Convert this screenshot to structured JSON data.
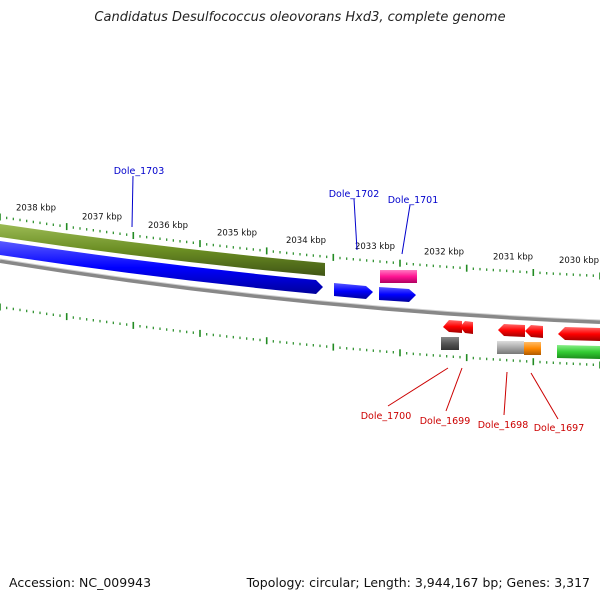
{
  "title": "Candidatus Desulfococcus oleovorans Hxd3, complete genome",
  "footer": {
    "accession": "Accession: NC_009943",
    "summary": "Topology: circular; Length: 3,944,167 bp; Genes: 3,317"
  },
  "scale_labels": [
    "2038 kbp",
    "2037 kbp",
    "2036 kbp",
    "2035 kbp",
    "2034 kbp",
    "2033 kbp",
    "2032 kbp",
    "2031 kbp",
    "2030 kbp"
  ],
  "genes": [
    {
      "label": "Dole_1703",
      "color": "#0000cc"
    },
    {
      "label": "Dole_1702",
      "color": "#0000cc"
    },
    {
      "label": "Dole_1701",
      "color": "#0000cc"
    },
    {
      "label": "Dole_1700",
      "color": "#cc0000"
    },
    {
      "label": "Dole_1699",
      "color": "#cc0000"
    },
    {
      "label": "Dole_1698",
      "color": "#cc0000"
    },
    {
      "label": "Dole_1697",
      "color": "#cc0000"
    }
  ],
  "colors": {
    "cds_forward": "#0000ff",
    "cds_reverse": "#ff0000",
    "cog_olive": "#6b8e23",
    "cog_magenta": "#ff1493",
    "cog_green": "#33cc33",
    "cog_orange": "#ff8800",
    "cog_gray": "#aaaaaa",
    "cog_darkgray": "#555555",
    "backbone": "#888888",
    "ticks": "#228b22"
  }
}
